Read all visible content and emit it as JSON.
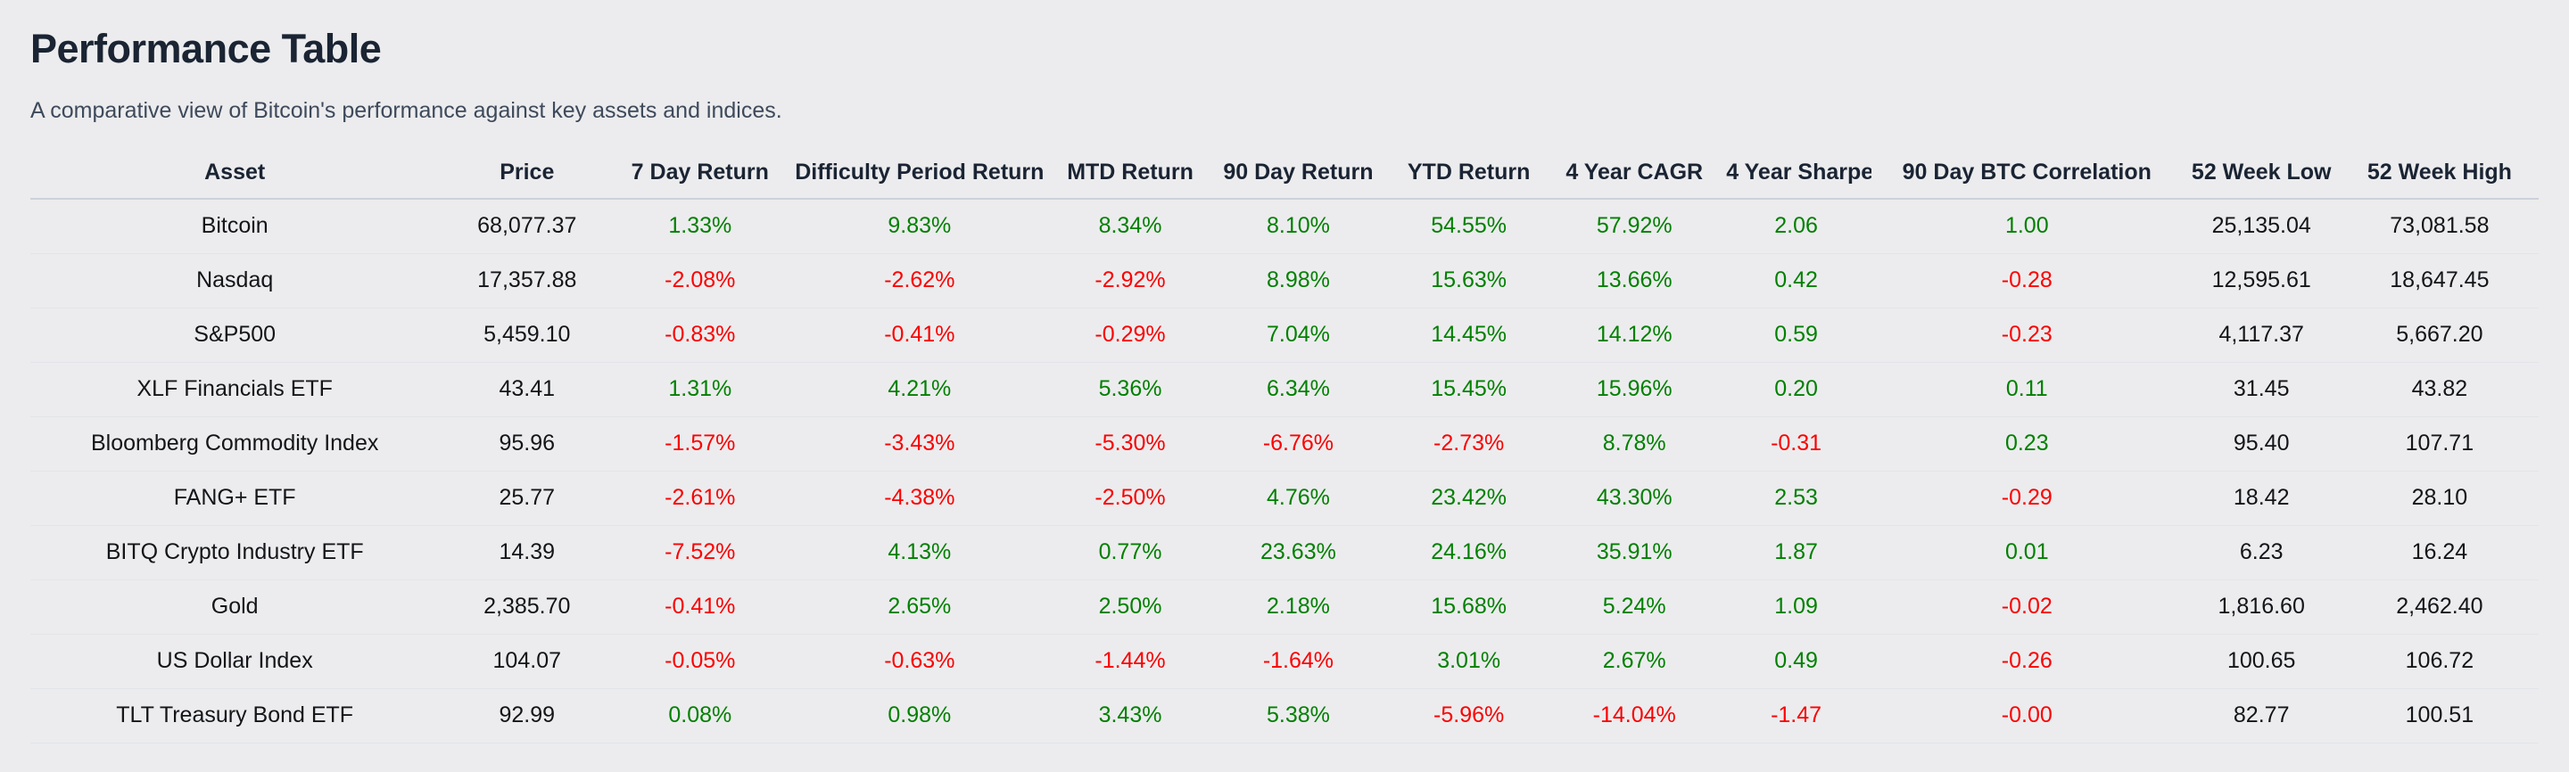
{
  "header": {
    "title": "Performance Table",
    "subtitle": "A comparative view of Bitcoin's performance against key assets and indices."
  },
  "colors": {
    "background": "#ececee",
    "heading_text": "#1a2433",
    "subtitle_text": "#3e4a5b",
    "body_text": "#131518",
    "positive": "#008000",
    "negative": "#fb0000",
    "header_rule": "#ccd2da",
    "row_rule": "#e3e4e9"
  },
  "table": {
    "columns": [
      {
        "key": "asset",
        "label": "Asset",
        "width": "16.3%",
        "signed": false
      },
      {
        "key": "price",
        "label": "Price",
        "width": "7.0%",
        "signed": false
      },
      {
        "key": "day7",
        "label": "7 Day Return",
        "width": "6.8%",
        "signed": true
      },
      {
        "key": "difficulty",
        "label": "Difficulty Period Return",
        "width": "10.7%",
        "signed": true
      },
      {
        "key": "mtd",
        "label": "MTD Return",
        "width": "6.1%",
        "signed": true
      },
      {
        "key": "day90",
        "label": "90 Day Return",
        "width": "7.3%",
        "signed": true
      },
      {
        "key": "ytd",
        "label": "YTD Return",
        "width": "6.3%",
        "signed": true
      },
      {
        "key": "cagr4",
        "label": "4 Year CAGR",
        "width": "6.9%",
        "signed": true
      },
      {
        "key": "sharpe4",
        "label": "4 Year Sharpe",
        "width": "6.0%",
        "signed": true
      },
      {
        "key": "btc_corr90",
        "label": "90 Day BTC Correlation",
        "width": "12.4%",
        "signed": true
      },
      {
        "key": "low52",
        "label": "52 Week Low",
        "width": "6.3%",
        "signed": false
      },
      {
        "key": "high52",
        "label": "52 Week High",
        "width": "7.9%",
        "signed": false
      }
    ],
    "rows": [
      {
        "asset": "Bitcoin",
        "price": "68,077.37",
        "day7": "1.33%",
        "difficulty": "9.83%",
        "mtd": "8.34%",
        "day90": "8.10%",
        "ytd": "54.55%",
        "cagr4": "57.92%",
        "sharpe4": "2.06",
        "btc_corr90": "1.00",
        "low52": "25,135.04",
        "high52": "73,081.58"
      },
      {
        "asset": "Nasdaq",
        "price": "17,357.88",
        "day7": "-2.08%",
        "difficulty": "-2.62%",
        "mtd": "-2.92%",
        "day90": "8.98%",
        "ytd": "15.63%",
        "cagr4": "13.66%",
        "sharpe4": "0.42",
        "btc_corr90": "-0.28",
        "low52": "12,595.61",
        "high52": "18,647.45"
      },
      {
        "asset": "S&P500",
        "price": "5,459.10",
        "day7": "-0.83%",
        "difficulty": "-0.41%",
        "mtd": "-0.29%",
        "day90": "7.04%",
        "ytd": "14.45%",
        "cagr4": "14.12%",
        "sharpe4": "0.59",
        "btc_corr90": "-0.23",
        "low52": "4,117.37",
        "high52": "5,667.20"
      },
      {
        "asset": "XLF Financials ETF",
        "price": "43.41",
        "day7": "1.31%",
        "difficulty": "4.21%",
        "mtd": "5.36%",
        "day90": "6.34%",
        "ytd": "15.45%",
        "cagr4": "15.96%",
        "sharpe4": "0.20",
        "btc_corr90": "0.11",
        "low52": "31.45",
        "high52": "43.82"
      },
      {
        "asset": "Bloomberg Commodity Index",
        "price": "95.96",
        "day7": "-1.57%",
        "difficulty": "-3.43%",
        "mtd": "-5.30%",
        "day90": "-6.76%",
        "ytd": "-2.73%",
        "cagr4": "8.78%",
        "sharpe4": "-0.31",
        "btc_corr90": "0.23",
        "low52": "95.40",
        "high52": "107.71"
      },
      {
        "asset": "FANG+ ETF",
        "price": "25.77",
        "day7": "-2.61%",
        "difficulty": "-4.38%",
        "mtd": "-2.50%",
        "day90": "4.76%",
        "ytd": "23.42%",
        "cagr4": "43.30%",
        "sharpe4": "2.53",
        "btc_corr90": "-0.29",
        "low52": "18.42",
        "high52": "28.10"
      },
      {
        "asset": "BITQ Crypto Industry ETF",
        "price": "14.39",
        "day7": "-7.52%",
        "difficulty": "4.13%",
        "mtd": "0.77%",
        "day90": "23.63%",
        "ytd": "24.16%",
        "cagr4": "35.91%",
        "sharpe4": "1.87",
        "btc_corr90": "0.01",
        "low52": "6.23",
        "high52": "16.24"
      },
      {
        "asset": "Gold",
        "price": "2,385.70",
        "day7": "-0.41%",
        "difficulty": "2.65%",
        "mtd": "2.50%",
        "day90": "2.18%",
        "ytd": "15.68%",
        "cagr4": "5.24%",
        "sharpe4": "1.09",
        "btc_corr90": "-0.02",
        "low52": "1,816.60",
        "high52": "2,462.40"
      },
      {
        "asset": "US Dollar Index",
        "price": "104.07",
        "day7": "-0.05%",
        "difficulty": "-0.63%",
        "mtd": "-1.44%",
        "day90": "-1.64%",
        "ytd": "3.01%",
        "cagr4": "2.67%",
        "sharpe4": "0.49",
        "btc_corr90": "-0.26",
        "low52": "100.65",
        "high52": "106.72"
      },
      {
        "asset": "TLT Treasury Bond ETF",
        "price": "92.99",
        "day7": "0.08%",
        "difficulty": "0.98%",
        "mtd": "3.43%",
        "day90": "5.38%",
        "ytd": "-5.96%",
        "cagr4": "-14.04%",
        "sharpe4": "-1.47",
        "btc_corr90": "-0.00",
        "low52": "82.77",
        "high52": "100.51"
      }
    ]
  }
}
